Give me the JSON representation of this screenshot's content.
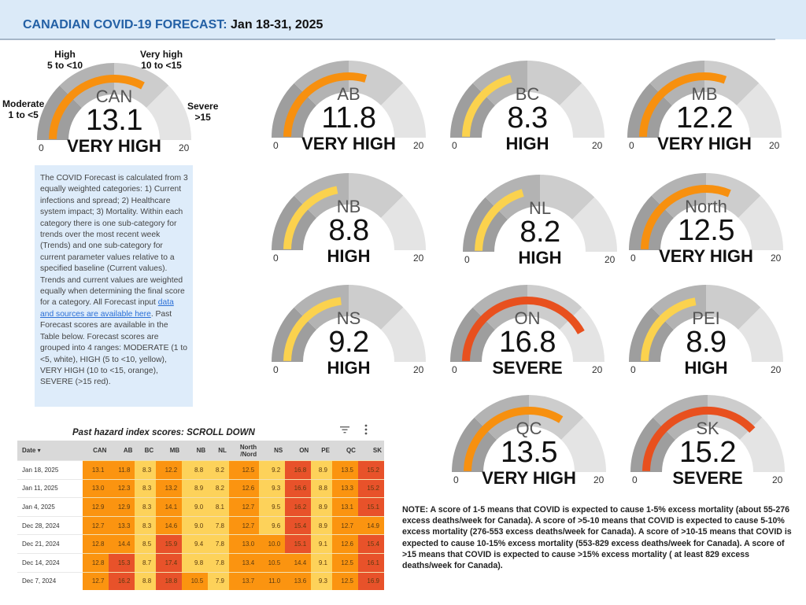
{
  "header": {
    "title_prefix": "CANADIAN COVID-19 FORECAST:",
    "title_date": "Jan 18-31, 2025"
  },
  "gauge_scale": {
    "min": 0,
    "max": 20,
    "min_label": "0",
    "max_label": "20",
    "bands": [
      {
        "from": 0,
        "to": 5,
        "color": "#9e9e9e"
      },
      {
        "from": 5,
        "to": 10,
        "color": "#b3b3b3"
      },
      {
        "from": 10,
        "to": 15,
        "color": "#cdcdcd"
      },
      {
        "from": 15,
        "to": 20,
        "color": "#e4e4e4"
      }
    ],
    "level_colors": {
      "HIGH": "#fbd24e",
      "VERY HIGH": "#f7900f",
      "SEVERE": "#e8501e"
    }
  },
  "can_legend": {
    "moderate": {
      "name": "Moderate",
      "range": "1 to <5"
    },
    "high": {
      "name": "High",
      "range": "5 to <10"
    },
    "very_high": {
      "name": "Very high",
      "range": "10 to <15"
    },
    "severe": {
      "name": "Severe",
      "range": ">15"
    }
  },
  "gauges": [
    {
      "region": "CAN",
      "value": 13.1,
      "value_text": "13.1",
      "level": "VERY HIGH"
    },
    {
      "region": "AB",
      "value": 11.8,
      "value_text": "11.8",
      "level": "VERY HIGH"
    },
    {
      "region": "BC",
      "value": 8.3,
      "value_text": "8.3",
      "level": "HIGH"
    },
    {
      "region": "MB",
      "value": 12.2,
      "value_text": "12.2",
      "level": "VERY HIGH"
    },
    {
      "region": "NB",
      "value": 8.8,
      "value_text": "8.8",
      "level": "HIGH"
    },
    {
      "region": "NL",
      "value": 8.2,
      "value_text": "8.2",
      "level": "HIGH"
    },
    {
      "region": "North",
      "value": 12.5,
      "value_text": "12.5",
      "level": "VERY HIGH"
    },
    {
      "region": "NS",
      "value": 9.2,
      "value_text": "9.2",
      "level": "HIGH"
    },
    {
      "region": "ON",
      "value": 16.8,
      "value_text": "16.8",
      "level": "SEVERE"
    },
    {
      "region": "PEI",
      "value": 8.9,
      "value_text": "8.9",
      "level": "HIGH"
    },
    {
      "region": "QC",
      "value": 13.5,
      "value_text": "13.5",
      "level": "VERY HIGH"
    },
    {
      "region": "SK",
      "value": 15.2,
      "value_text": "15.2",
      "level": "SEVERE"
    }
  ],
  "description": {
    "text_before_link": "The COVID Forecast is calculated from 3 equally weighted categories: 1) Current infections and spread; 2) Healthcare system impact; 3) Mortality. Within each category there is one sub-category for trends over the most recent week (Trends) and one sub-category for current parameter values relative to a specified baseline (Current values). Trends and current values are weighted equally when determining the final score for a category. All Forecast input ",
    "link_text": "data and sources are available here",
    "text_after_link": ". Past Forecast scores are available in the Table below. Forecast scores are grouped into 4 ranges: MODERATE (1 to <5, white), HIGH (5 to <10, yellow), VERY HIGH (10 to <15, orange), SEVERE (>15 red)."
  },
  "history_table": {
    "title": "Past hazard index scores: SCROLL DOWN",
    "filter_icon": "filter-icon",
    "menu_icon": "more-vert-icon",
    "columns": [
      "Date ▾",
      "CAN",
      "AB",
      "BC",
      "MB",
      "NB",
      "NL",
      "North /Nord",
      "NS",
      "ON",
      "PE",
      "QC",
      "SK"
    ],
    "rows": [
      {
        "date": "Jan 18, 2025",
        "values": [
          "13.1",
          "11.8",
          "8.3",
          "12.2",
          "8.8",
          "8.2",
          "12.5",
          "9.2",
          "16.8",
          "8.9",
          "13.5",
          "15.2"
        ]
      },
      {
        "date": "Jan 11, 2025",
        "values": [
          "13.0",
          "12.3",
          "8.3",
          "13.2",
          "8.9",
          "8.2",
          "12.6",
          "9.3",
          "16.6",
          "8.8",
          "13.3",
          "15.2"
        ]
      },
      {
        "date": "Jan 4, 2025",
        "values": [
          "12.9",
          "12.9",
          "8.3",
          "14.1",
          "9.0",
          "8.1",
          "12.7",
          "9.5",
          "16.2",
          "8.9",
          "13.1",
          "15.1"
        ]
      },
      {
        "date": "Dec 28, 2024",
        "values": [
          "12.7",
          "13.3",
          "8.3",
          "14.6",
          "9.0",
          "7.8",
          "12.7",
          "9.6",
          "15.4",
          "8.9",
          "12.7",
          "14.9"
        ]
      },
      {
        "date": "Dec 21, 2024",
        "values": [
          "12.8",
          "14.4",
          "8.5",
          "15.9",
          "9.4",
          "7.8",
          "13.0",
          "10.0",
          "15.1",
          "9.1",
          "12.6",
          "15.4"
        ]
      },
      {
        "date": "Dec 14, 2024",
        "values": [
          "12.8",
          "15.3",
          "8.7",
          "17.4",
          "9.8",
          "7.8",
          "13.4",
          "10.5",
          "14.4",
          "9.1",
          "12.5",
          "16.1"
        ]
      },
      {
        "date": "Dec 7, 2024",
        "values": [
          "12.7",
          "16.2",
          "8.8",
          "18.8",
          "10.5",
          "7.9",
          "13.7",
          "11.0",
          "13.6",
          "9.3",
          "12.5",
          "16.9"
        ]
      }
    ],
    "cell_colors": {
      "moderate": "#ffffff",
      "high": "#fdd25a",
      "very_high": "#fb9410",
      "severe": "#e8522a"
    }
  },
  "note": "NOTE: A score of 1-5 means that COVID is expected to cause 1-5% excess mortality (about 55-276 excess deaths/week for Canada). A score of >5-10 means that COVID is expected to cause 5-10% excess mortality (276-553 excess deaths/week for Canada). A score of >10-15 means that COVID is expected to cause 10-15% excess mortality (553-829 excess deaths/week for Canada). A score of >15 means that COVID is expected to cause >15% excess mortality ( at least 829 excess deaths/week for Canada)."
}
